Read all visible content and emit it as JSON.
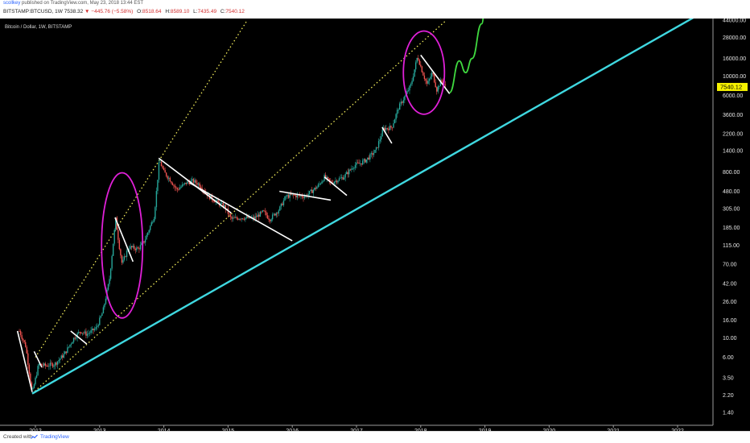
{
  "header": {
    "author": "scollkey",
    "published": "published on TradingView.com, May 23, 2018 13:44 EST",
    "symbol": "BITSTAMP:BTCUSD, 1W",
    "last": "7538.32",
    "arrow": "▼",
    "change": "−445.76 (−5.58%)",
    "o_label": "O:",
    "o_val": "8518.64",
    "h_label": "H:",
    "h_val": "8589.10",
    "l_label": "L:",
    "l_val": "7435.49",
    "c_label": "C:",
    "c_val": "7540.12"
  },
  "footer": {
    "created_with": "Created with",
    "brand": "TradingView"
  },
  "colors": {
    "candle_up": "#26a69a",
    "candle_down": "#ef5350",
    "support_line": "#3fd8e0",
    "dotted_line": "#f2ec5a",
    "circles": "#e020d8",
    "trendlines": "#ffffff",
    "projection": "#3fd83f",
    "price_tag_bg": "#f6f200"
  },
  "chart_data": {
    "type": "candlestick",
    "title": "Bitcoin / Dollar, 1W, BITSTAMP",
    "y_scale": "log",
    "ylim": [
      1.1,
      44000
    ],
    "x_ticks": [
      "2012",
      "2013",
      "2014",
      "2015",
      "2016",
      "2017",
      "2018",
      "2019",
      "2020",
      "2021",
      "2022"
    ],
    "y_ticks": [
      "44000.00",
      "28000.00",
      "16000.00",
      "10000.00",
      "6000.00",
      "3600.00",
      "2200.00",
      "1400.00",
      "800.00",
      "480.00",
      "305.00",
      "185.00",
      "115.00",
      "70.00",
      "42.00",
      "26.00",
      "16.00",
      "10.00",
      "6.00",
      "3.50",
      "2.20",
      "1.40"
    ],
    "y_tick_values": [
      44000,
      28000,
      16000,
      10000,
      6000,
      3600,
      2200,
      1400,
      800,
      480,
      305,
      185,
      115,
      70,
      42,
      26,
      16,
      10,
      6,
      3.5,
      2.2,
      1.4
    ],
    "last_price_label": "7540.12",
    "last_price": 7540.12,
    "price_path": [
      [
        2011.75,
        12
      ],
      [
        2011.85,
        8
      ],
      [
        2011.95,
        2.3
      ],
      [
        2012.05,
        5
      ],
      [
        2012.15,
        4.8
      ],
      [
        2012.3,
        5.0
      ],
      [
        2012.45,
        6.5
      ],
      [
        2012.6,
        10
      ],
      [
        2012.7,
        12
      ],
      [
        2012.8,
        11
      ],
      [
        2012.95,
        13
      ],
      [
        2013.05,
        20
      ],
      [
        2013.15,
        45
      ],
      [
        2013.25,
        230
      ],
      [
        2013.3,
        120
      ],
      [
        2013.35,
        70
      ],
      [
        2013.45,
        110
      ],
      [
        2013.6,
        105
      ],
      [
        2013.7,
        130
      ],
      [
        2013.85,
        250
      ],
      [
        2013.93,
        1100
      ],
      [
        2014.0,
        800
      ],
      [
        2014.1,
        650
      ],
      [
        2014.2,
        500
      ],
      [
        2014.35,
        600
      ],
      [
        2014.45,
        630
      ],
      [
        2014.55,
        580
      ],
      [
        2014.7,
        420
      ],
      [
        2014.85,
        350
      ],
      [
        2014.95,
        320
      ],
      [
        2015.05,
        230
      ],
      [
        2015.2,
        240
      ],
      [
        2015.4,
        235
      ],
      [
        2015.55,
        280
      ],
      [
        2015.65,
        230
      ],
      [
        2015.8,
        300
      ],
      [
        2015.9,
        420
      ],
      [
        2016.0,
        430
      ],
      [
        2016.2,
        420
      ],
      [
        2016.4,
        550
      ],
      [
        2016.5,
        700
      ],
      [
        2016.6,
        600
      ],
      [
        2016.8,
        700
      ],
      [
        2016.97,
        960
      ],
      [
        2017.05,
        1000
      ],
      [
        2017.15,
        1100
      ],
      [
        2017.3,
        1400
      ],
      [
        2017.42,
        2500
      ],
      [
        2017.55,
        2600
      ],
      [
        2017.65,
        4300
      ],
      [
        2017.75,
        5800
      ],
      [
        2017.85,
        8000
      ],
      [
        2017.95,
        17000
      ],
      [
        2018.03,
        11000
      ],
      [
        2018.1,
        8000
      ],
      [
        2018.18,
        11000
      ],
      [
        2018.25,
        7000
      ],
      [
        2018.32,
        9000
      ],
      [
        2018.39,
        7540
      ]
    ],
    "support_line": [
      [
        2011.95,
        2.3
      ],
      [
        2022.5,
        60000
      ]
    ],
    "dotted_line_lower": [
      [
        2011.95,
        2.3
      ],
      [
        2018.4,
        44000
      ]
    ],
    "dotted_line_upper": [
      [
        2012.0,
        6.0
      ],
      [
        2015.3,
        44000
      ]
    ],
    "trend_lines": [
      [
        [
          2011.72,
          12
        ],
        [
          2011.95,
          2.4
        ]
      ],
      [
        [
          2011.98,
          7
        ],
        [
          2012.1,
          4.6
        ]
      ],
      [
        [
          2012.55,
          12
        ],
        [
          2012.8,
          8.5
        ]
      ],
      [
        [
          2013.24,
          240
        ],
        [
          2013.52,
          75
        ]
      ],
      [
        [
          2013.92,
          1150
        ],
        [
          2015.05,
          270
        ]
      ],
      [
        [
          2014.4,
          600
        ],
        [
          2016.0,
          130
        ]
      ],
      [
        [
          2015.8,
          480
        ],
        [
          2016.6,
          380
        ]
      ],
      [
        [
          2016.5,
          700
        ],
        [
          2016.85,
          430
        ]
      ],
      [
        [
          2017.4,
          2600
        ],
        [
          2017.55,
          1700
        ]
      ],
      [
        [
          2018.0,
          17500
        ],
        [
          2018.45,
          6300
        ]
      ]
    ],
    "circles": [
      {
        "center": [
          2013.35,
          115
        ],
        "rx_years": 0.32,
        "ry_ratio": 6.8
      },
      {
        "center": [
          2018.05,
          11000
        ],
        "rx_years": 0.32,
        "ry_ratio": 3.0
      }
    ],
    "projection": [
      [
        2018.45,
        6500
      ],
      [
        2018.6,
        15000
      ],
      [
        2018.7,
        11000
      ],
      [
        2018.8,
        16000
      ],
      [
        2018.95,
        40000
      ],
      [
        2019.0,
        60000
      ]
    ]
  }
}
